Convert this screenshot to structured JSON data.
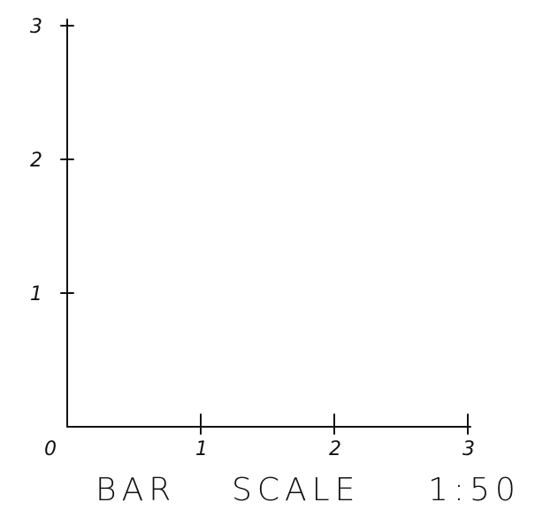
{
  "diagram": {
    "axis_range": [
      0,
      3
    ],
    "x_ticks": [
      {
        "value": 0,
        "label": "0"
      },
      {
        "value": 1,
        "label": "1"
      },
      {
        "value": 2,
        "label": "2"
      },
      {
        "value": 3,
        "label": "3"
      }
    ],
    "y_ticks": [
      {
        "value": 1,
        "label": "1"
      },
      {
        "value": 2,
        "label": "2"
      },
      {
        "value": 3,
        "label": "3"
      }
    ],
    "caption_words": [
      "BAR",
      "SCALE",
      "1:50"
    ]
  }
}
